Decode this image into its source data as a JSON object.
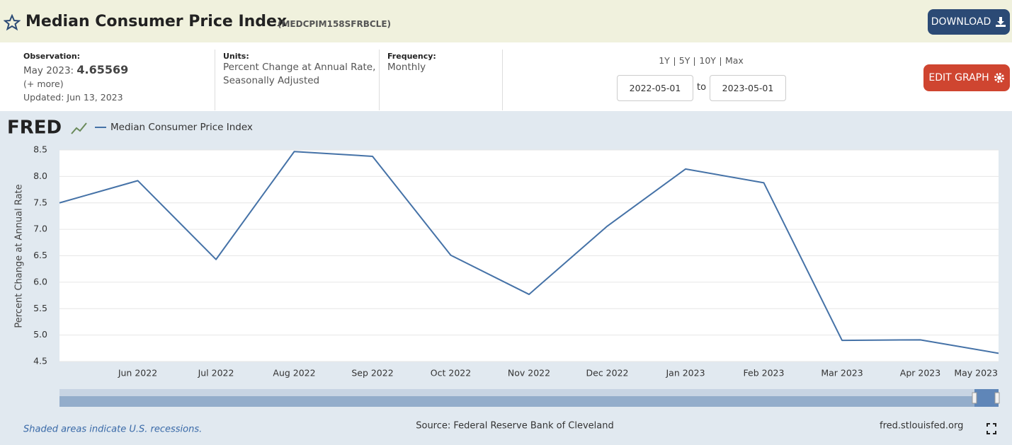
{
  "header": {
    "title": "Median Consumer Price Index",
    "series_id": "(MEDCPIM158SFRBCLE)",
    "download": "DOWNLOAD"
  },
  "info": {
    "observation": {
      "label": "Observation:",
      "date": "May 2023:",
      "value": "4.65569",
      "more": "(+ more)",
      "updated": "Updated: Jun 13, 2023"
    },
    "units": {
      "label": "Units:",
      "text": [
        "Percent Change at Annual Rate,",
        "Seasonally Adjusted"
      ]
    },
    "frequency": {
      "label": "Frequency:",
      "text": "Monthly"
    },
    "ranges": [
      "1Y",
      "5Y",
      "10Y",
      "Max"
    ],
    "start_date": "2022-05-01",
    "to": "to",
    "end_date": "2023-05-01",
    "edit_graph": "EDIT GRAPH"
  },
  "chart_data": {
    "type": "line",
    "logo": "FRED",
    "y_label": "Percent Change at Annual Rate",
    "categories": [
      null,
      "Jun 2022",
      "Jul 2022",
      "Aug 2022",
      "Sep 2022",
      "Oct 2022",
      "Nov 2022",
      "Dec 2022",
      "Jan 2023",
      "Feb 2023",
      "Mar 2023",
      "Apr 2023",
      "May 2023"
    ],
    "series": [
      {
        "name": "Median Consumer Price Index",
        "color": "#4572a7",
        "values": [
          7.5,
          7.92,
          6.43,
          8.47,
          8.38,
          6.51,
          5.77,
          7.06,
          8.14,
          7.88,
          4.9,
          4.91,
          4.65569
        ]
      }
    ],
    "ylim": [
      4.5,
      8.5
    ],
    "yticks": [
      4.5,
      {
        "value": 5,
        "label": "5.0"
      },
      5.5,
      {
        "value": 6,
        "label": "6.0"
      },
      6.5,
      {
        "value": 7,
        "label": "7.0"
      },
      7.5,
      {
        "value": 8,
        "label": "8.0"
      },
      8.5
    ],
    "grid": true
  },
  "footer": {
    "recessions": "Shaded areas indicate U.S. recessions.",
    "source": "Source: Federal Reserve Bank of Cleveland",
    "site": "fred.stlouisfed.org"
  }
}
